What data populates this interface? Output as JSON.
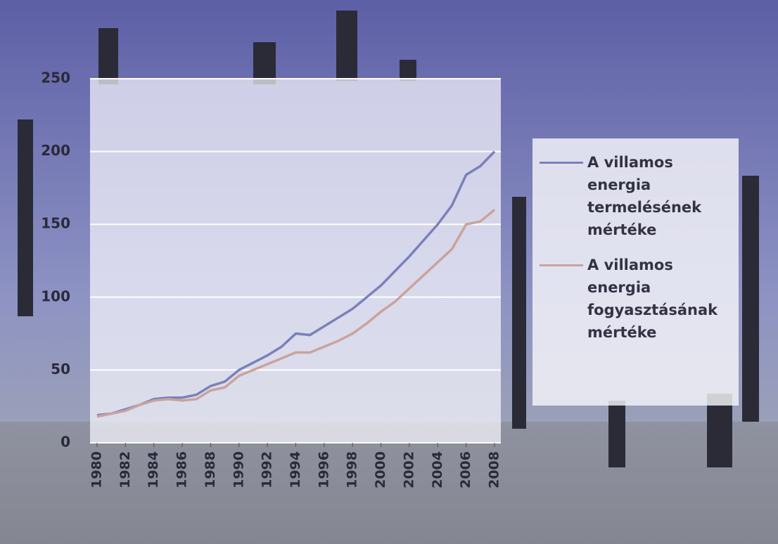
{
  "chart_data": {
    "type": "line",
    "x": [
      1980,
      1981,
      1982,
      1983,
      1984,
      1985,
      1986,
      1987,
      1988,
      1989,
      1990,
      1991,
      1992,
      1993,
      1994,
      1995,
      1996,
      1997,
      1998,
      1999,
      2000,
      2001,
      2002,
      2003,
      2004,
      2005,
      2006,
      2007,
      2008
    ],
    "series": [
      {
        "name": "A villamos energia termelésének mértéke",
        "color": "#7c80b9",
        "values": [
          19,
          20,
          23,
          26,
          30,
          31,
          31,
          33,
          39,
          42,
          50,
          55,
          60,
          66,
          75,
          74,
          80,
          86,
          92,
          100,
          108,
          118,
          128,
          139,
          150,
          163,
          184,
          190,
          200
        ]
      },
      {
        "name": "A villamos energia fogyasztásának mértéke",
        "color": "#c9a39c",
        "values": [
          18,
          20,
          22,
          26,
          29,
          30,
          29,
          30,
          36,
          38,
          46,
          50,
          54,
          58,
          62,
          62,
          66,
          70,
          75,
          82,
          90,
          97,
          106,
          115,
          124,
          133,
          150,
          152,
          160
        ]
      }
    ],
    "xlim": [
      1980,
      2008
    ],
    "xticks": [
      1980,
      1982,
      1984,
      1986,
      1988,
      1990,
      1992,
      1994,
      1996,
      1998,
      2000,
      2002,
      2004,
      2006,
      2008
    ],
    "ylim": [
      0,
      250
    ],
    "yticks": [
      0,
      50,
      100,
      150,
      200,
      250
    ],
    "grid": true
  }
}
